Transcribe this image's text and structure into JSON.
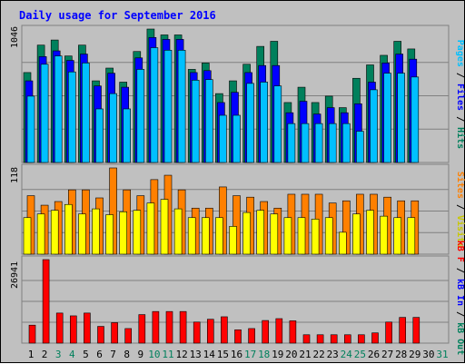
{
  "title": "Daily usage for September 2016",
  "colors": {
    "title": "#0000ff",
    "hits": "#00805c",
    "files": "#0000ff",
    "pages": "#00c0ff",
    "visits": "#ffff00",
    "sites": "#ff8000",
    "kbytes": "#ff0000",
    "weekend_label": "#00805c",
    "weekday_label": "#000000",
    "panel_bg": "#c0c0c0"
  },
  "chart_data": [
    {
      "type": "bar",
      "panel": "hits-files-pages",
      "ymax": 1046,
      "ymax_label": "1046",
      "right_label": {
        "pages": "Pages",
        "files": "Files",
        "hits": "Hits",
        "sep": " / "
      },
      "series": [
        {
          "name": "Hits",
          "values": [
            705,
            920,
            960,
            835,
            920,
            640,
            740,
            630,
            870,
            1046,
            1000,
            1000,
            730,
            780,
            540,
            640,
            770,
            910,
            950,
            470,
            590,
            470,
            520,
            430,
            660,
            765,
            840,
            950,
            890
          ]
        },
        {
          "name": "Files",
          "values": [
            640,
            830,
            875,
            800,
            850,
            600,
            700,
            590,
            820,
            980,
            965,
            965,
            705,
            720,
            470,
            550,
            705,
            760,
            760,
            390,
            480,
            380,
            430,
            390,
            460,
            630,
            780,
            850,
            810
          ]
        },
        {
          "name": "Pages",
          "values": [
            520,
            770,
            835,
            710,
            780,
            420,
            540,
            420,
            730,
            900,
            880,
            880,
            645,
            650,
            370,
            370,
            620,
            630,
            600,
            305,
            305,
            305,
            305,
            305,
            245,
            570,
            700,
            700,
            670
          ]
        }
      ]
    },
    {
      "type": "bar",
      "panel": "visits-sites",
      "ymax": 118,
      "ymax_label": "118",
      "right_label": {
        "visits": "Visits",
        "sites": "Sites",
        "sep": " / "
      },
      "series": [
        {
          "name": "Visits",
          "values": [
            50,
            55,
            60,
            68,
            55,
            62,
            54,
            58,
            60,
            70,
            75,
            62,
            50,
            50,
            50,
            38,
            57,
            60,
            55,
            50,
            50,
            48,
            50,
            30,
            55,
            60,
            52,
            50,
            50
          ]
        },
        {
          "name": "Sites",
          "values": [
            80,
            67,
            72,
            88,
            88,
            77,
            118,
            88,
            80,
            102,
            108,
            88,
            63,
            63,
            92,
            80,
            78,
            72,
            63,
            82,
            82,
            82,
            70,
            73,
            82,
            82,
            78,
            73,
            73
          ]
        }
      ]
    },
    {
      "type": "bar",
      "panel": "kbytes",
      "ymax": 26941,
      "ymax_label": "26941",
      "right_label": {
        "kbf": "kB F",
        "kbin": "kB In",
        "kbout": "kB Out",
        "sep": " / "
      },
      "series": [
        {
          "name": "kB F",
          "values": [
            5800,
            26941,
            9700,
            8800,
            9700,
            5400,
            6600,
            4700,
            9200,
            10200,
            10200,
            10200,
            6800,
            7700,
            8500,
            4300,
            4700,
            7300,
            7900,
            7200,
            2700,
            2700,
            2700,
            2700,
            2700,
            3300,
            6800,
            8300,
            8300
          ]
        }
      ]
    }
  ],
  "x_axis": {
    "labels": [
      "1",
      "2",
      "3",
      "4",
      "5",
      "6",
      "7",
      "8",
      "9",
      "10",
      "11",
      "12",
      "13",
      "14",
      "15",
      "16",
      "17",
      "18",
      "19",
      "20",
      "21",
      "22",
      "23",
      "24",
      "25",
      "26",
      "27",
      "28",
      "29",
      "30",
      "31"
    ],
    "weekend": [
      3,
      4,
      10,
      11,
      17,
      18,
      24,
      25,
      31
    ]
  }
}
